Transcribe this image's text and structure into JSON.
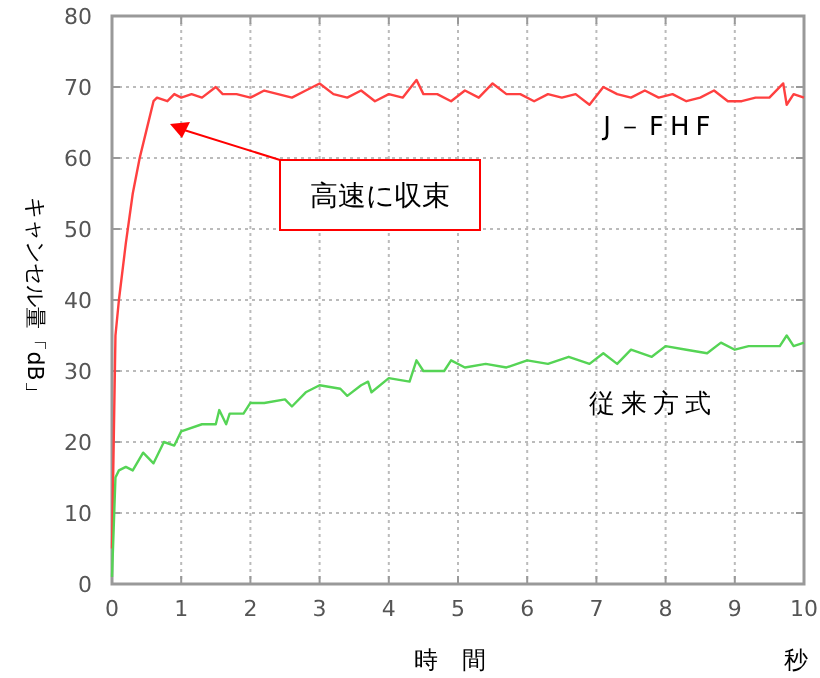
{
  "chart_data": {
    "type": "line",
    "xlabel": "時　間",
    "ylabel": "キャンセル量「dB」",
    "annotations": [
      "高速に収束",
      "秒"
    ],
    "xlim": [
      0,
      10
    ],
    "ylim": [
      0,
      80
    ],
    "xticks": [
      0,
      1,
      2,
      3,
      4,
      5,
      6,
      7,
      8,
      9,
      10
    ],
    "yticks": [
      0,
      10,
      20,
      30,
      40,
      50,
      60,
      70,
      80
    ],
    "grid": true,
    "legend": false,
    "marker": "none",
    "line_style": "solid",
    "series": [
      {
        "name": "J－FHF",
        "color": "#ff4040",
        "x": [
          0,
          0.05,
          0.1,
          0.2,
          0.3,
          0.4,
          0.5,
          0.6,
          0.65,
          0.8,
          0.9,
          1.0,
          1.15,
          1.3,
          1.5,
          1.6,
          1.8,
          2.0,
          2.2,
          2.4,
          2.6,
          2.8,
          3.0,
          3.2,
          3.4,
          3.6,
          3.8,
          4.0,
          4.2,
          4.4,
          4.5,
          4.7,
          4.9,
          5.1,
          5.3,
          5.5,
          5.7,
          5.9,
          6.1,
          6.3,
          6.5,
          6.7,
          6.9,
          7.1,
          7.3,
          7.5,
          7.7,
          7.9,
          8.1,
          8.3,
          8.5,
          8.7,
          8.9,
          9.1,
          9.3,
          9.5,
          9.7,
          9.75,
          9.85,
          10
        ],
        "values": [
          5,
          35,
          40,
          48,
          55,
          60,
          64,
          68,
          68.5,
          68,
          69,
          68.5,
          69,
          68.5,
          70,
          69,
          69,
          68.5,
          69.5,
          69,
          68.5,
          69.5,
          70.5,
          69,
          68.5,
          69.5,
          68,
          69,
          68.5,
          71,
          69,
          69,
          68,
          69.5,
          68.5,
          70.5,
          69,
          69,
          68,
          69,
          68.5,
          69,
          67.5,
          70,
          69,
          68.5,
          69.5,
          68.5,
          69,
          68,
          68.5,
          69.5,
          68,
          68,
          68.5,
          68.5,
          70.5,
          67.5,
          69,
          68.5
        ]
      },
      {
        "name": "従来方式",
        "color": "#55d455",
        "x": [
          0,
          0.05,
          0.1,
          0.2,
          0.3,
          0.45,
          0.6,
          0.75,
          0.9,
          1.0,
          1.3,
          1.5,
          1.55,
          1.65,
          1.7,
          1.9,
          2.0,
          2.2,
          2.5,
          2.6,
          2.8,
          3.0,
          3.3,
          3.4,
          3.6,
          3.7,
          3.75,
          4.0,
          4.3,
          4.4,
          4.5,
          4.8,
          4.9,
          5.1,
          5.4,
          5.7,
          6.0,
          6.3,
          6.6,
          6.9,
          7.1,
          7.3,
          7.5,
          7.8,
          8.0,
          8.3,
          8.6,
          8.8,
          9.0,
          9.2,
          9.5,
          9.65,
          9.75,
          9.85,
          10
        ],
        "values": [
          1,
          15,
          16,
          16.5,
          16,
          18.5,
          17,
          20,
          19.5,
          21.5,
          22.5,
          22.5,
          24.5,
          22.5,
          24,
          24,
          25.5,
          25.5,
          26,
          25,
          27,
          28,
          27.5,
          26.5,
          28,
          28.5,
          27,
          29,
          28.5,
          31.5,
          30,
          30,
          31.5,
          30.5,
          31,
          30.5,
          31.5,
          31,
          32,
          31,
          32.5,
          31,
          33,
          32,
          33.5,
          33,
          32.5,
          34,
          33,
          33.5,
          33.5,
          33.5,
          35,
          33.5,
          34
        ]
      }
    ]
  }
}
